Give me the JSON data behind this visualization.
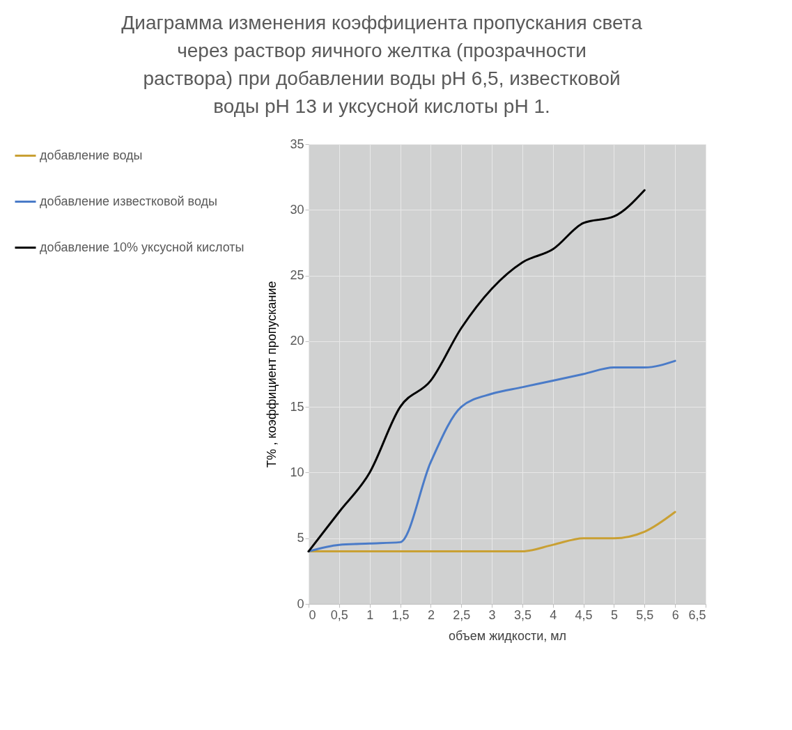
{
  "chart_data": {
    "type": "line",
    "title": "Диаграмма изменения коэффициента пропускания света через раствор яичного желтка (прозрачности раствора) при добавлении воды pH 6,5, известковой воды  pH 13 и уксусной кислоты pH 1.",
    "xlabel": "объем жидкости, мл",
    "ylabel": "T% , коэффициент  пропускание",
    "x": [
      0,
      0.5,
      1,
      1.5,
      2,
      2.5,
      3,
      3.5,
      4,
      4.5,
      5,
      5.5,
      6
    ],
    "series": [
      {
        "name": "добавление воды",
        "color": "#c9a033",
        "values": [
          4,
          4,
          4,
          4,
          4,
          4,
          4,
          4,
          4.5,
          5,
          5,
          5.5,
          7
        ]
      },
      {
        "name": "добавление известковой воды",
        "color": "#4a7bc8",
        "values": [
          4,
          4.5,
          4.6,
          4.7,
          10.8,
          15,
          16,
          16.5,
          17,
          17.5,
          18,
          18,
          18.5
        ]
      },
      {
        "name": "добавление 10% уксусной кислоты",
        "color": "#000000",
        "values": [
          4,
          7,
          10,
          15,
          17,
          21,
          24,
          26,
          27,
          29,
          29.5,
          31.5,
          null
        ]
      }
    ],
    "xlim": [
      0,
      6.5
    ],
    "xticks": [
      0,
      {
        "value": 0.5,
        "label": "0,5"
      },
      1,
      {
        "value": 1.5,
        "label": "1,5"
      },
      2,
      {
        "value": 2.5,
        "label": "2,5"
      },
      3,
      {
        "value": 3.5,
        "label": "3,5"
      },
      4,
      {
        "value": 4.5,
        "label": "4,5"
      },
      5,
      {
        "value": 5.5,
        "label": "5,5"
      },
      6,
      {
        "value": 6.5,
        "label": "6,5"
      }
    ],
    "ylim": [
      0,
      35
    ],
    "yticks": [
      0,
      5,
      10,
      15,
      20,
      25,
      30,
      35
    ],
    "grid": true,
    "legend": "left"
  }
}
